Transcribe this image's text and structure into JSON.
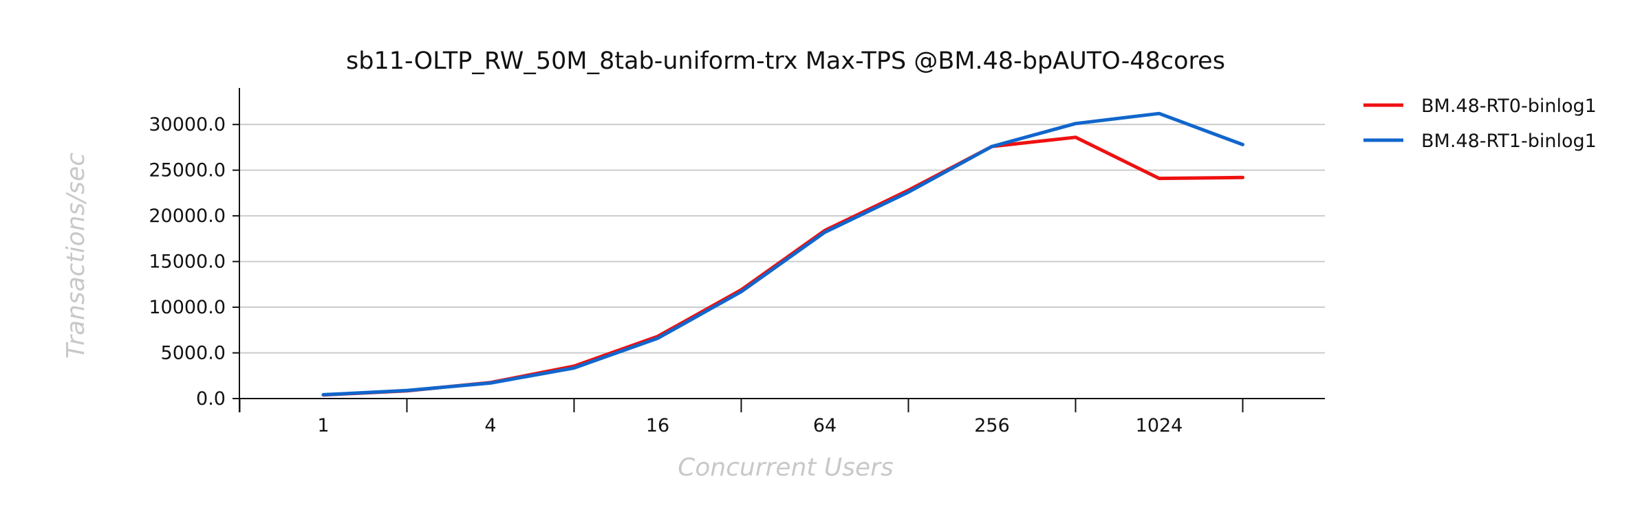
{
  "chart_data": {
    "type": "line",
    "title": "sb11-OLTP_RW_50M_8tab-uniform-trx Max-TPS @BM.48-bpAUTO-48cores",
    "xlabel": "Concurrent Users",
    "ylabel": "Transactions/sec",
    "x": [
      1,
      2,
      4,
      8,
      16,
      32,
      64,
      128,
      256,
      512,
      1024,
      2048
    ],
    "x_scale": "log2",
    "x_tick_labels": [
      "1",
      "4",
      "16",
      "64",
      "256",
      "1024"
    ],
    "x_tick_values": [
      1,
      4,
      16,
      64,
      256,
      1024
    ],
    "y_tick_labels": [
      "0.0",
      "5000.0",
      "10000.0",
      "15000.0",
      "20000.0",
      "25000.0",
      "30000.0"
    ],
    "ylim": [
      0,
      34000
    ],
    "grid": "horizontal",
    "legend_position": "right",
    "series": [
      {
        "name": "BM.48-RT0-binlog1",
        "color": "#ee1111",
        "values": [
          400,
          850,
          1750,
          3550,
          6800,
          11900,
          18400,
          22800,
          27600,
          28600,
          24100,
          24200
        ]
      },
      {
        "name": "BM.48-RT1-binlog1",
        "color": "#1166cc",
        "values": [
          420,
          880,
          1700,
          3350,
          6600,
          11700,
          18200,
          22600,
          27600,
          30100,
          31200,
          27800
        ]
      }
    ]
  }
}
